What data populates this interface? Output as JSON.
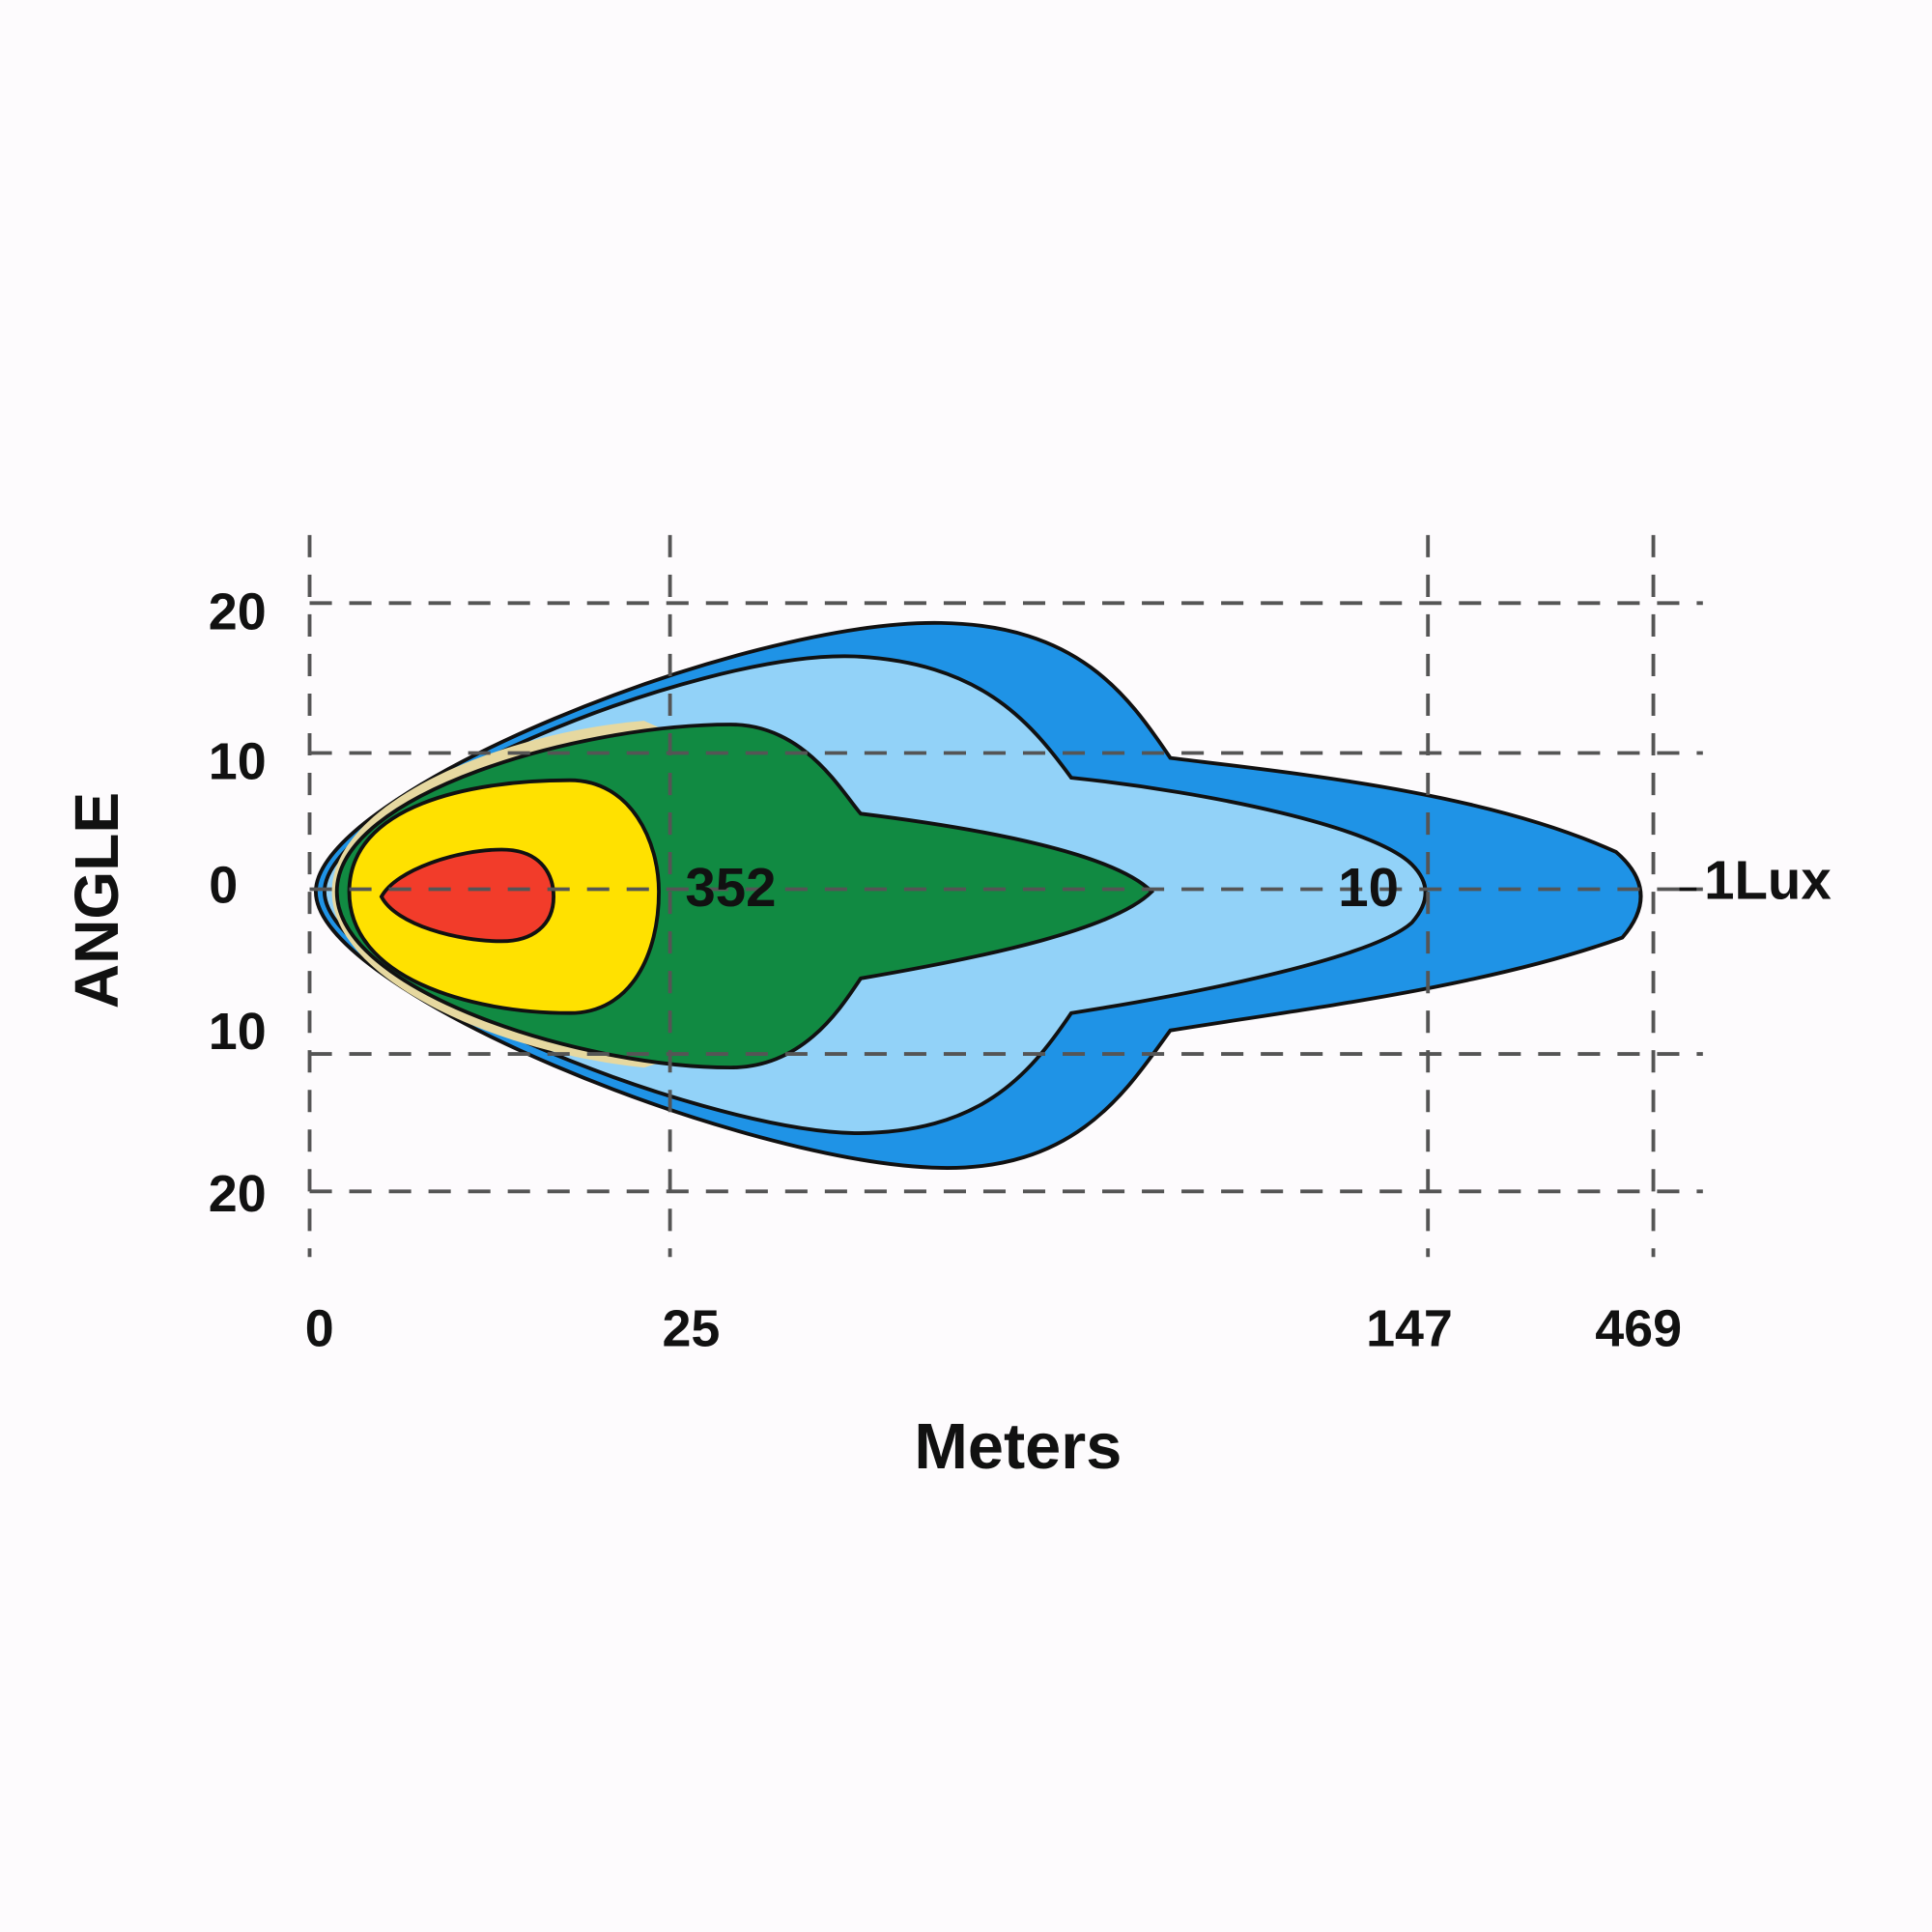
{
  "y_axis": {
    "title": "ANGLE",
    "labels": [
      "20",
      "10",
      "0",
      "10",
      "20"
    ]
  },
  "x_axis": {
    "title": "Meters",
    "labels": [
      "0",
      "25",
      "147",
      "469"
    ]
  },
  "zone_labels": [
    "352",
    "10",
    "1Lux"
  ]
}
